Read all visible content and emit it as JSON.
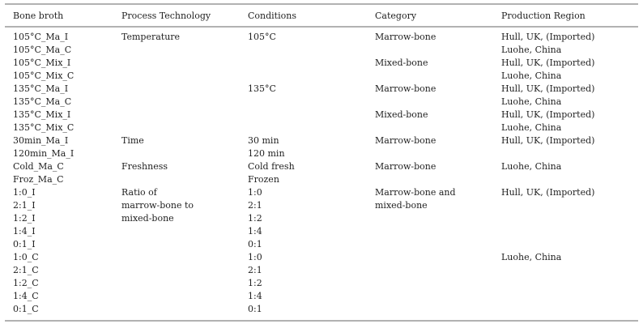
{
  "table": {
    "header": [
      "Bone broth",
      "Process Technology",
      "Conditions",
      "Category",
      "Production Region"
    ],
    "rows": [
      {
        "broth": "105°C_Ma_I",
        "process": "Temperature",
        "conditions": "105°C",
        "category": "Marrow-bone",
        "region": "Hull, UK, (Imported)"
      },
      {
        "broth": "105°C_Ma_C",
        "region": "Luohe, China"
      },
      {
        "broth": "105°C_Mix_I",
        "category": "Mixed-bone",
        "region": "Hull, UK, (Imported)"
      },
      {
        "broth": "105°C_Mix_C",
        "region": "Luohe, China"
      },
      {
        "broth": "135°C_Ma_I",
        "conditions": "135°C",
        "category": "Marrow-bone",
        "region": "Hull, UK, (Imported)"
      },
      {
        "broth": "135°C_Ma_C",
        "region": "Luohe, China"
      },
      {
        "broth": "135°C_Mix_I",
        "category": "Mixed-bone",
        "region": "Hull, UK, (Imported)"
      },
      {
        "broth": "135°C_Mix_C",
        "region": "Luohe, China"
      },
      {
        "broth": "30min_Ma_I",
        "process": "Time",
        "conditions": "30 min",
        "category": "Marrow-bone",
        "region": "Hull, UK, (Imported)"
      },
      {
        "broth": "120min_Ma_I",
        "conditions": "120 min"
      },
      {
        "broth": "Cold_Ma_C",
        "process": "Freshness",
        "conditions": "Cold fresh",
        "category": "Marrow-bone",
        "region": "Luohe, China"
      },
      {
        "broth": "Froz_Ma_C",
        "conditions": "Frozen"
      },
      {
        "broth": "1:0_I",
        "process": "Ratio of",
        "conditions": "1:0",
        "category": "Marrow-bone and",
        "region": "Hull, UK, (Imported)"
      },
      {
        "broth": "2:1_I",
        "process": "marrow-bone to",
        "conditions": "2:1",
        "category": "mixed-bone"
      },
      {
        "broth": "1:2_I",
        "process": "mixed-bone",
        "conditions": "1:2"
      },
      {
        "broth": "1:4_I",
        "conditions": "1:4"
      },
      {
        "broth": "0:1_I",
        "conditions": "0:1"
      },
      {
        "broth": "1:0_C",
        "conditions": "1:0",
        "region": "Luohe, China"
      },
      {
        "broth": "2:1_C",
        "conditions": "2:1"
      },
      {
        "broth": "1:2_C",
        "conditions": "1:2"
      },
      {
        "broth": "1:4_C",
        "conditions": "1:4"
      },
      {
        "broth": "0:1_C",
        "conditions": "0:1"
      }
    ]
  }
}
